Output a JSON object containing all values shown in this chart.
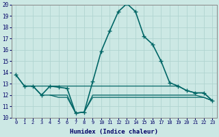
{
  "xlabel": "Humidex (Indice chaleur)",
  "xlim": [
    -0.5,
    23.5
  ],
  "ylim": [
    10,
    20
  ],
  "yticks": [
    10,
    11,
    12,
    13,
    14,
    15,
    16,
    17,
    18,
    19,
    20
  ],
  "xticks": [
    0,
    1,
    2,
    3,
    4,
    5,
    6,
    7,
    8,
    9,
    10,
    11,
    12,
    13,
    14,
    15,
    16,
    17,
    18,
    19,
    20,
    21,
    22,
    23
  ],
  "bg_color": "#cce8e4",
  "grid_color": "#b0d4d0",
  "line_color": "#006666",
  "series": [
    {
      "x": [
        0,
        1,
        2,
        3,
        4,
        5,
        6,
        7,
        8,
        9,
        10,
        11,
        12,
        13,
        14,
        15,
        16,
        17,
        18,
        19,
        20,
        21,
        22,
        23
      ],
      "y": [
        13.8,
        12.8,
        12.8,
        12.0,
        12.8,
        12.7,
        12.6,
        10.4,
        10.5,
        13.2,
        15.9,
        17.7,
        19.4,
        20.1,
        19.4,
        17.2,
        16.5,
        15.0,
        13.1,
        12.8,
        12.4,
        12.2,
        12.2,
        11.5
      ],
      "marker": "+",
      "linewidth": 1.2,
      "markersize": 4
    },
    {
      "x": [
        0,
        1,
        2,
        3,
        4,
        5,
        6,
        7,
        8,
        9,
        10,
        11,
        12,
        13,
        14,
        15,
        16,
        17,
        18,
        19,
        20,
        21,
        22,
        23
      ],
      "y": [
        13.8,
        12.8,
        12.8,
        12.8,
        12.8,
        12.8,
        12.8,
        12.8,
        12.8,
        12.8,
        12.8,
        12.8,
        12.8,
        12.8,
        12.8,
        12.8,
        12.8,
        12.8,
        12.8,
        12.8,
        12.4,
        12.2,
        12.2,
        11.5
      ],
      "marker": null,
      "linewidth": 0.9,
      "markersize": 0
    },
    {
      "x": [
        2,
        3,
        4,
        5,
        6,
        7,
        8,
        9,
        10,
        11,
        12,
        13,
        14,
        15,
        16,
        17,
        18,
        19,
        20,
        21,
        22,
        23
      ],
      "y": [
        12.8,
        12.0,
        12.0,
        12.0,
        12.0,
        10.4,
        10.5,
        12.0,
        12.0,
        12.0,
        12.0,
        12.0,
        12.0,
        12.0,
        12.0,
        12.0,
        12.0,
        12.0,
        12.0,
        12.0,
        11.8,
        11.5
      ],
      "marker": null,
      "linewidth": 0.9,
      "markersize": 0
    },
    {
      "x": [
        4,
        5,
        6,
        7,
        8,
        9,
        10,
        11,
        12,
        13,
        14,
        15,
        16,
        17,
        18,
        19,
        20,
        21,
        22,
        23
      ],
      "y": [
        12.0,
        11.8,
        11.8,
        10.4,
        10.5,
        11.8,
        11.8,
        11.8,
        11.8,
        11.8,
        11.8,
        11.8,
        11.8,
        11.8,
        11.8,
        11.8,
        11.8,
        11.8,
        11.8,
        11.5
      ],
      "marker": null,
      "linewidth": 0.9,
      "markersize": 0
    }
  ]
}
